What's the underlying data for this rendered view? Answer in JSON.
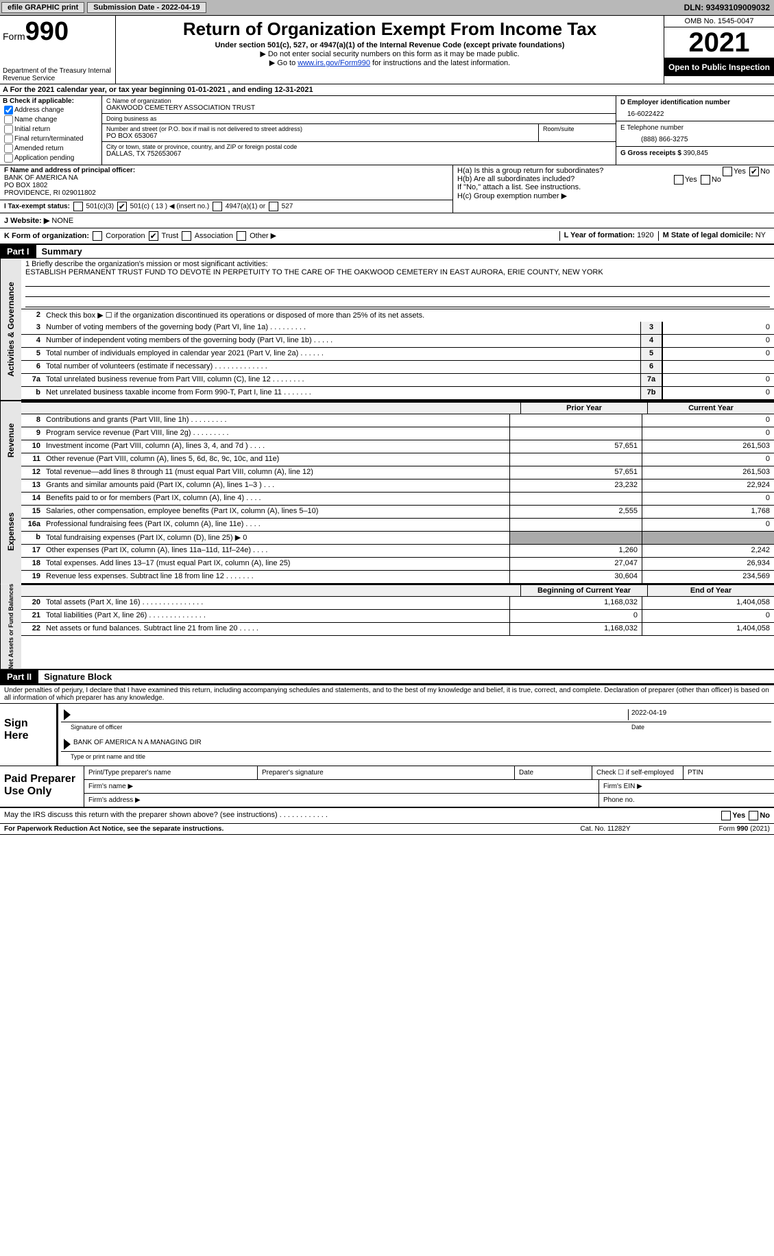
{
  "topbar": {
    "efile": "efile GRAPHIC print",
    "submission_label": "Submission Date - ",
    "submission_date": "2022-04-19",
    "dln_label": "DLN: ",
    "dln": "93493109009032"
  },
  "header": {
    "form_label": "Form",
    "form_number": "990",
    "dept": "Department of the Treasury\nInternal Revenue Service",
    "title": "Return of Organization Exempt From Income Tax",
    "subtitle": "Under section 501(c), 527, or 4947(a)(1) of the Internal Revenue Code (except private foundations)",
    "warn": "▶ Do not enter social security numbers on this form as it may be made public.",
    "goto_pre": "▶ Go to ",
    "goto_link": "www.irs.gov/Form990",
    "goto_post": " for instructions and the latest information.",
    "omb": "OMB No. 1545-0047",
    "year": "2021",
    "open": "Open to Public Inspection"
  },
  "row_a": "A For the 2021 calendar year, or tax year beginning 01-01-2021    , and ending 12-31-2021",
  "box_b": {
    "label": "B Check if applicable:",
    "opts": [
      "Address change",
      "Name change",
      "Initial return",
      "Final return/terminated",
      "Amended return",
      "Application pending"
    ],
    "checked": [
      true,
      false,
      false,
      false,
      false,
      false
    ]
  },
  "box_c": {
    "name_label": "C Name of organization",
    "name": "OAKWOOD CEMETERY ASSOCIATION TRUST",
    "dba_label": "Doing business as",
    "dba": "",
    "street_label": "Number and street (or P.O. box if mail is not delivered to street address)",
    "street": "PO BOX 653067",
    "room_label": "Room/suite",
    "city_label": "City or town, state or province, country, and ZIP or foreign postal code",
    "city": "DALLAS, TX   752653067"
  },
  "box_d": {
    "label": "D Employer identification number",
    "value": "16-6022422"
  },
  "box_e": {
    "label": "E Telephone number",
    "value": "(888) 866-3275"
  },
  "box_g": {
    "label": "G Gross receipts $ ",
    "value": "390,845"
  },
  "box_f": {
    "label": "F Name and address of principal officer:",
    "lines": [
      "BANK OF AMERICA NA",
      "PO BOX 1802",
      "PROVIDENCE, RI  029011802"
    ]
  },
  "box_h": {
    "ha": "H(a)  Is this a group return for subordinates?",
    "ha_yes": false,
    "ha_no": true,
    "hb": "H(b)  Are all subordinates included?",
    "hb_note": "If \"No,\" attach a list. See instructions.",
    "hc": "H(c)  Group exemption number ▶"
  },
  "box_i": {
    "label": "I Tax-exempt status:",
    "c3": false,
    "c_other": true,
    "c_other_num": "( 13 ) ◀ (insert no.)",
    "a4947": false,
    "s527": false
  },
  "box_j": {
    "label": "J Website: ▶",
    "value": "NONE"
  },
  "box_k": {
    "label": "K Form of organization:",
    "corp": false,
    "trust": true,
    "assoc": false,
    "other": false
  },
  "box_l": {
    "label": "L Year of formation: ",
    "value": "1920"
  },
  "box_m": {
    "label": "M State of legal domicile: ",
    "value": "NY"
  },
  "part1": {
    "num": "Part I",
    "title": "Summary"
  },
  "mission": {
    "label": "1   Briefly describe the organization's mission or most significant activities:",
    "text": "ESTABLISH PERMANENT TRUST FUND TO DEVOTE IN PERPETUITY TO THE CARE OF THE OAKWOOD CEMETERY IN EAST AURORA, ERIE COUNTY, NEW YORK"
  },
  "sides": {
    "ag": "Activities & Governance",
    "rev": "Revenue",
    "exp": "Expenses",
    "na": "Net Assets or Fund Balances"
  },
  "lines_gov": [
    {
      "n": "2",
      "d": "Check this box ▶ ☐  if the organization discontinued its operations or disposed of more than 25% of its net assets.",
      "box": "",
      "v": ""
    },
    {
      "n": "3",
      "d": "Number of voting members of the governing body (Part VI, line 1a)   .    .    .    .    .    .    .    .    .",
      "box": "3",
      "v": "0"
    },
    {
      "n": "4",
      "d": "Number of independent voting members of the governing body (Part VI, line 1b)   .    .    .    .    .",
      "box": "4",
      "v": "0"
    },
    {
      "n": "5",
      "d": "Total number of individuals employed in calendar year 2021 (Part V, line 2a)   .    .    .    .    .    .",
      "box": "5",
      "v": "0"
    },
    {
      "n": "6",
      "d": "Total number of volunteers (estimate if necessary)    .    .    .    .    .    .    .    .    .    .    .    .    .",
      "box": "6",
      "v": ""
    },
    {
      "n": "7a",
      "d": "Total unrelated business revenue from Part VIII, column (C), line 12   .    .    .    .    .    .    .    .",
      "box": "7a",
      "v": "0"
    },
    {
      "n": "b",
      "d": "Net unrelated business taxable income from Form 990-T, Part I, line 11   .    .    .    .    .    .    .",
      "box": "7b",
      "v": "0"
    }
  ],
  "year_headers": {
    "prior": "Prior Year",
    "current": "Current Year"
  },
  "revenue": [
    {
      "n": "8",
      "d": "Contributions and grants (Part VIII, line 1h)   .    .    .    .    .    .    .    .    .",
      "p": "",
      "c": "0"
    },
    {
      "n": "9",
      "d": "Program service revenue (Part VIII, line 2g)   .    .    .    .    .    .    .    .    .",
      "p": "",
      "c": "0"
    },
    {
      "n": "10",
      "d": "Investment income (Part VIII, column (A), lines 3, 4, and 7d )   .    .    .    .",
      "p": "57,651",
      "c": "261,503"
    },
    {
      "n": "11",
      "d": "Other revenue (Part VIII, column (A), lines 5, 6d, 8c, 9c, 10c, and 11e)",
      "p": "",
      "c": "0"
    },
    {
      "n": "12",
      "d": "Total revenue—add lines 8 through 11 (must equal Part VIII, column (A), line 12)",
      "p": "57,651",
      "c": "261,503"
    }
  ],
  "expenses": [
    {
      "n": "13",
      "d": "Grants and similar amounts paid (Part IX, column (A), lines 1–3 )   .    .    .",
      "p": "23,232",
      "c": "22,924"
    },
    {
      "n": "14",
      "d": "Benefits paid to or for members (Part IX, column (A), line 4)   .    .    .    .",
      "p": "",
      "c": "0"
    },
    {
      "n": "15",
      "d": "Salaries, other compensation, employee benefits (Part IX, column (A), lines 5–10)",
      "p": "2,555",
      "c": "1,768"
    },
    {
      "n": "16a",
      "d": "Professional fundraising fees (Part IX, column (A), line 11e)   .    .    .    .",
      "p": "",
      "c": "0"
    },
    {
      "n": "b",
      "d": "Total fundraising expenses (Part IX, column (D), line 25) ▶ 0",
      "p": "grey",
      "c": "grey"
    },
    {
      "n": "17",
      "d": "Other expenses (Part IX, column (A), lines 11a–11d, 11f–24e)   .    .    .    .",
      "p": "1,260",
      "c": "2,242"
    },
    {
      "n": "18",
      "d": "Total expenses. Add lines 13–17 (must equal Part IX, column (A), line 25)",
      "p": "27,047",
      "c": "26,934"
    },
    {
      "n": "19",
      "d": "Revenue less expenses. Subtract line 18 from line 12   .    .    .    .    .    .    .",
      "p": "30,604",
      "c": "234,569"
    }
  ],
  "netassets_headers": {
    "begin": "Beginning of Current Year",
    "end": "End of Year"
  },
  "netassets": [
    {
      "n": "20",
      "d": "Total assets (Part X, line 16)   .    .    .    .    .    .    .    .    .    .    .    .    .    .    .",
      "p": "1,168,032",
      "c": "1,404,058"
    },
    {
      "n": "21",
      "d": "Total liabilities (Part X, line 26)   .    .    .    .    .    .    .    .    .    .    .    .    .    .",
      "p": "0",
      "c": "0"
    },
    {
      "n": "22",
      "d": "Net assets or fund balances. Subtract line 21 from line 20   .    .    .    .    .",
      "p": "1,168,032",
      "c": "1,404,058"
    }
  ],
  "part2": {
    "num": "Part II",
    "title": "Signature Block"
  },
  "declare": "Under penalties of perjury, I declare that I have examined this return, including accompanying schedules and statements, and to the best of my knowledge and belief, it is true, correct, and complete. Declaration of preparer (other than officer) is based on all information of which preparer has any knowledge.",
  "sign": {
    "label": "Sign Here",
    "sig_of_officer": "Signature of officer",
    "date_val": "2022-04-19",
    "date_label": "Date",
    "name": "BANK OF AMERICA N A  MANAGING DIR",
    "name_label": "Type or print name and title"
  },
  "paid": {
    "label": "Paid Preparer Use Only",
    "r1": [
      "Print/Type preparer's name",
      "Preparer's signature",
      "Date",
      "Check ☐ if self-employed",
      "PTIN"
    ],
    "firm_name": "Firm's name     ▶",
    "firm_ein": "Firm's EIN ▶",
    "firm_addr": "Firm's address ▶",
    "phone": "Phone no."
  },
  "may_irs": "May the IRS discuss this return with the preparer shown above? (see instructions)   .    .    .    .    .    .    .    .    .    .    .    .",
  "footer": {
    "notice": "For Paperwork Reduction Act Notice, see the separate instructions.",
    "cat": "Cat. No. 11282Y",
    "form": "Form 990 (2021)"
  }
}
